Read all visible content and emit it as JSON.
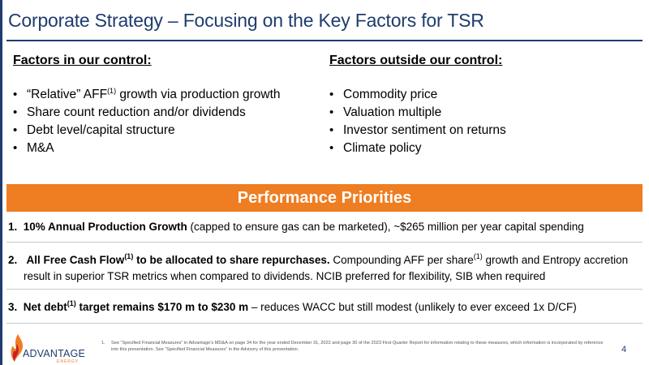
{
  "title": "Corporate Strategy – Focusing on the Key Factors for TSR",
  "left_column": {
    "heading": "Factors in our control:",
    "items": [
      {
        "before": "“Relative” AFF",
        "sup": "(1)",
        "after": " growth via production growth"
      },
      {
        "text": "Share count reduction and/or dividends"
      },
      {
        "text": "Debt level/capital structure"
      },
      {
        "text": "M&A"
      }
    ]
  },
  "right_column": {
    "heading": "Factors outside our control:",
    "items": [
      "Commodity price",
      "Valuation multiple",
      "Investor sentiment on returns",
      "Climate policy"
    ]
  },
  "bullet_char": "•",
  "banner": {
    "label": "Performance Priorities",
    "color": "#ef7d22"
  },
  "priorities": [
    {
      "num": "1.",
      "bold": "10% Annual Production Growth",
      "text": " (capped to ensure gas can be marketed), ~$265 million per year capital spending"
    },
    {
      "num": "2.",
      "bold_a": "All Free Cash Flow",
      "sup_a": "(1)",
      "bold_b": " to be allocated to share repurchases.",
      "text_a": " Compounding AFF per share",
      "sup_b": "(1)",
      "text_b": " growth and Entropy accretion",
      "text_c": "result in superior TSR metrics when compared to dividends. NCIB preferred for flexibility, SIB when required"
    },
    {
      "num": "3.",
      "bold_a": "Net debt",
      "sup_a": "(1)",
      "bold_b": " target remains $170 m to $230 m",
      "text": " – reduces WACC but still modest (unlikely to ever exceed 1x D/CF)"
    }
  ],
  "footnote": {
    "num": "1.",
    "text": "See “Specified Financial Measures” in Advantage’s MD&A on page 34 for the year ended December 31, 2022 and page 30 of the 2023 First Quarter Report for information relating to these measures, which information is incorporated by reference into this presentation. See “Specified Financial Measures” in the Advisory of this presentation."
  },
  "page_number": "4",
  "logo": {
    "name": "ADVANTAGE",
    "sub": "ENERGY"
  },
  "colors": {
    "navy": "#1f3c6e",
    "orange": "#ef7d22"
  }
}
